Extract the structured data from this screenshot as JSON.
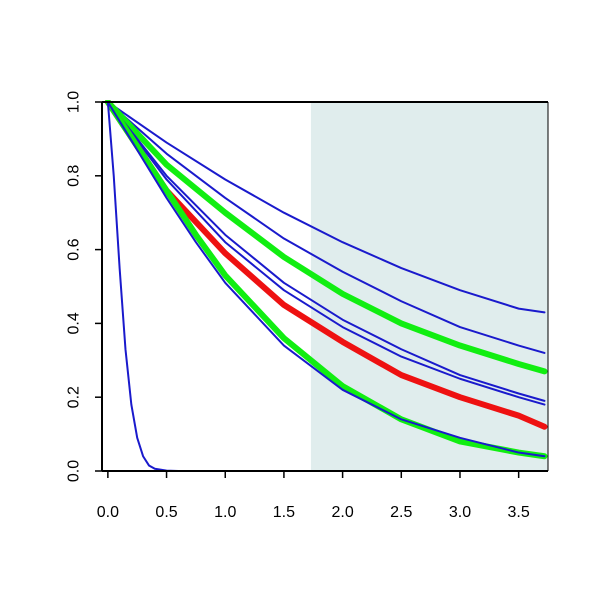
{
  "chart_data": {
    "type": "line",
    "title": "",
    "xlabel": "",
    "ylabel": "",
    "xlim": [
      -0.05,
      3.75
    ],
    "ylim": [
      0.0,
      1.0
    ],
    "grid": false,
    "x_ticks": [
      0.0,
      0.5,
      1.0,
      1.5,
      2.0,
      2.5,
      3.0,
      3.5
    ],
    "x_tick_labels": [
      "0.0",
      "0.5",
      "1.0",
      "1.5",
      "2.0",
      "2.5",
      "3.0",
      "3.5"
    ],
    "y_ticks": [
      0.0,
      0.2,
      0.4,
      0.6,
      0.8,
      1.0
    ],
    "y_tick_labels": [
      "0.0",
      "0.2",
      "0.4",
      "0.6",
      "0.8",
      "1.0"
    ],
    "shaded_region": {
      "x_start": 1.73,
      "x_end": 3.75,
      "color": "#e0eded"
    },
    "colors": {
      "blue": "#1a1acc",
      "green": "#11ee11",
      "red": "#ee1111",
      "axis": "#000000"
    },
    "series": [
      {
        "color": "#1a1acc",
        "width": "thin",
        "points": [
          [
            0,
            1
          ],
          [
            0.5,
            0.89
          ],
          [
            1,
            0.79
          ],
          [
            1.5,
            0.7
          ],
          [
            2,
            0.62
          ],
          [
            2.5,
            0.55
          ],
          [
            3,
            0.49
          ],
          [
            3.5,
            0.44
          ],
          [
            3.72,
            0.43
          ]
        ]
      },
      {
        "color": "#1a1acc",
        "width": "thin",
        "points": [
          [
            0,
            1
          ],
          [
            0.5,
            0.86
          ],
          [
            1,
            0.74
          ],
          [
            1.5,
            0.63
          ],
          [
            2,
            0.54
          ],
          [
            2.5,
            0.46
          ],
          [
            3,
            0.39
          ],
          [
            3.5,
            0.34
          ],
          [
            3.72,
            0.32
          ]
        ]
      },
      {
        "color": "#11ee11",
        "width": "thick",
        "points": [
          [
            0,
            1
          ],
          [
            0.5,
            0.83
          ],
          [
            1,
            0.7
          ],
          [
            1.5,
            0.58
          ],
          [
            2,
            0.48
          ],
          [
            2.5,
            0.4
          ],
          [
            3,
            0.34
          ],
          [
            3.5,
            0.29
          ],
          [
            3.72,
            0.27
          ]
        ]
      },
      {
        "color": "#1a1acc",
        "width": "thin",
        "points": [
          [
            0,
            1
          ],
          [
            0.5,
            0.8
          ],
          [
            1,
            0.64
          ],
          [
            1.5,
            0.51
          ],
          [
            2,
            0.41
          ],
          [
            2.5,
            0.33
          ],
          [
            3,
            0.26
          ],
          [
            3.5,
            0.21
          ],
          [
            3.72,
            0.19
          ]
        ]
      },
      {
        "color": "#1a1acc",
        "width": "thin",
        "points": [
          [
            0,
            1
          ],
          [
            0.5,
            0.79
          ],
          [
            1,
            0.62
          ],
          [
            1.5,
            0.49
          ],
          [
            2,
            0.39
          ],
          [
            2.5,
            0.31
          ],
          [
            3,
            0.25
          ],
          [
            3.5,
            0.2
          ],
          [
            3.72,
            0.18
          ]
        ]
      },
      {
        "color": "#ee1111",
        "width": "thick",
        "points": [
          [
            0,
            1
          ],
          [
            0.5,
            0.76
          ],
          [
            1,
            0.59
          ],
          [
            1.5,
            0.45
          ],
          [
            2,
            0.35
          ],
          [
            2.5,
            0.26
          ],
          [
            3,
            0.2
          ],
          [
            3.5,
            0.15
          ],
          [
            3.72,
            0.12
          ]
        ]
      },
      {
        "color": "#11ee11",
        "width": "thick",
        "points": [
          [
            0,
            1
          ],
          [
            0.25,
            0.88
          ],
          [
            0.5,
            0.76
          ],
          [
            0.75,
            0.64
          ],
          [
            1,
            0.53
          ],
          [
            1.5,
            0.36
          ],
          [
            2,
            0.23
          ],
          [
            2.5,
            0.14
          ],
          [
            3,
            0.08
          ],
          [
            3.5,
            0.05
          ],
          [
            3.72,
            0.04
          ]
        ]
      },
      {
        "color": "#1a1acc",
        "width": "thin",
        "points": [
          [
            0,
            1
          ],
          [
            0.25,
            0.87
          ],
          [
            0.5,
            0.74
          ],
          [
            0.75,
            0.62
          ],
          [
            1,
            0.51
          ],
          [
            1.5,
            0.34
          ],
          [
            2,
            0.22
          ],
          [
            2.5,
            0.14
          ],
          [
            3,
            0.09
          ],
          [
            3.5,
            0.05
          ],
          [
            3.72,
            0.04
          ]
        ]
      },
      {
        "color": "#1a1acc",
        "width": "thin",
        "points": [
          [
            0,
            1
          ],
          [
            0.05,
            0.8
          ],
          [
            0.1,
            0.55
          ],
          [
            0.15,
            0.33
          ],
          [
            0.2,
            0.18
          ],
          [
            0.25,
            0.09
          ],
          [
            0.3,
            0.04
          ],
          [
            0.35,
            0.015
          ],
          [
            0.4,
            0.006
          ],
          [
            0.5,
            0.001
          ],
          [
            0.6,
            0
          ],
          [
            3.72,
            0
          ]
        ]
      }
    ]
  }
}
